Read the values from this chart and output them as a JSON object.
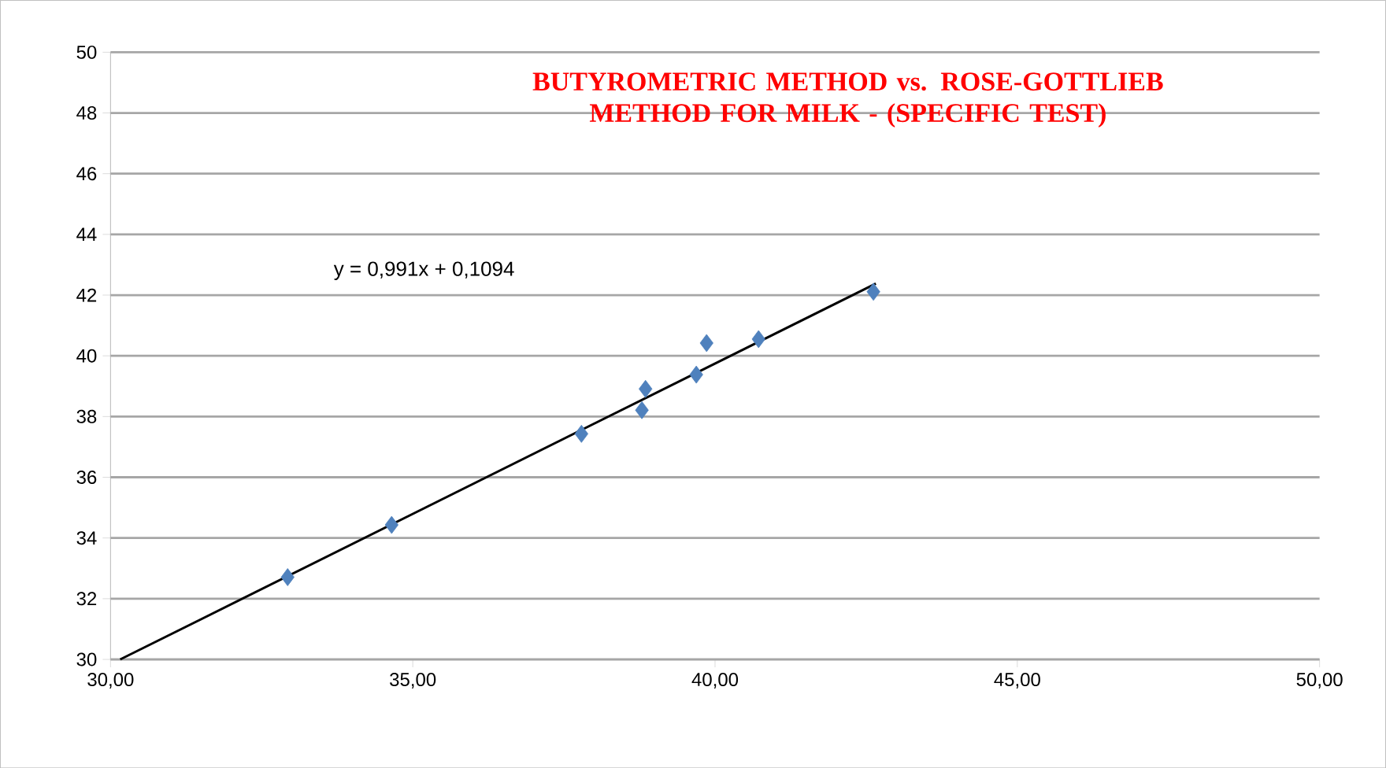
{
  "chart_data": {
    "type": "scatter",
    "title": "BUTYROMETRIC METHOD vs. ROSE-GOTTLIEB METHOD FOR MILK - (SPECIFIC TEST)",
    "annotations": [
      "y = 0,991x + 0,1094"
    ],
    "series": [
      {
        "color": "#4f81bd",
        "marker": "diamond",
        "x": [
          32.93,
          34.65,
          37.79,
          38.79,
          38.85,
          39.69,
          39.86,
          40.72,
          42.62
        ],
        "values": [
          32.71,
          34.43,
          37.43,
          38.21,
          38.91,
          39.38,
          40.42,
          40.55,
          42.11
        ]
      },
      {
        "type": "line",
        "color": "#000000",
        "marker": "none",
        "x": [
          30.16,
          42.66
        ],
        "values": [
          30.0,
          42.38
        ]
      }
    ],
    "xlim": [
      30,
      50
    ],
    "ylim": [
      30,
      50
    ],
    "xticks": [
      {
        "value": 30,
        "label": "30,00"
      },
      {
        "value": 35,
        "label": "35,00"
      },
      {
        "value": 40,
        "label": "40,00"
      },
      {
        "value": 45,
        "label": "45,00"
      },
      {
        "value": 50,
        "label": "50,00"
      }
    ],
    "yticks": [
      30,
      32,
      34,
      36,
      38,
      40,
      42,
      44,
      46,
      48,
      50
    ],
    "grid": "y"
  }
}
